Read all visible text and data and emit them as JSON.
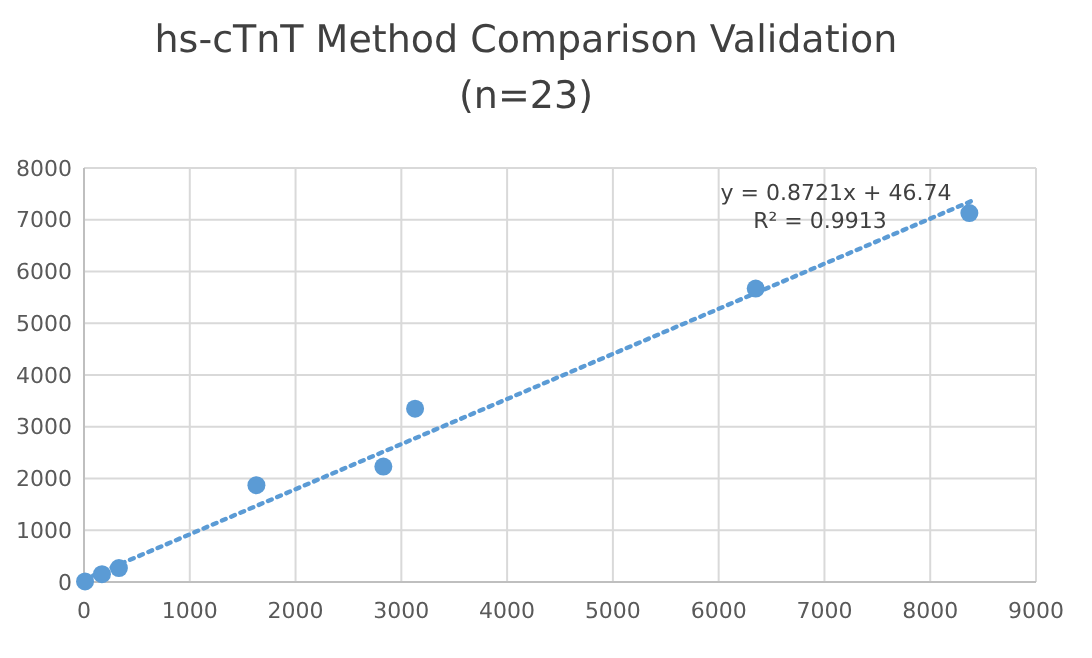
{
  "chart_data": {
    "type": "scatter",
    "title": "hs-cTnT Method Comparison Validation",
    "subtitle": "(n=23)",
    "series": [
      {
        "color": "#5b9bd5",
        "x": [
          10,
          170,
          330,
          1630,
          2830,
          3130,
          6350,
          8370
        ],
        "values": [
          10,
          150,
          270,
          1870,
          2230,
          3350,
          5670,
          7130
        ]
      },
      {
        "type": "line",
        "color": "#5b9bd5",
        "line_style": "dotted",
        "marker": "none",
        "x": [
          0,
          8400
        ],
        "values": [
          50,
          7370
        ]
      }
    ],
    "annotations": [
      "y = 0.8721x + 46.74",
      "R² = 0.9913"
    ],
    "xlim": [
      0,
      9000
    ],
    "xticks": [
      0,
      1000,
      2000,
      3000,
      4000,
      5000,
      6000,
      7000,
      8000,
      9000
    ],
    "ylim": [
      0,
      8000
    ],
    "yticks": [
      0,
      1000,
      2000,
      3000,
      4000,
      5000,
      6000,
      7000,
      8000
    ],
    "grid": true,
    "marker": "circle"
  }
}
